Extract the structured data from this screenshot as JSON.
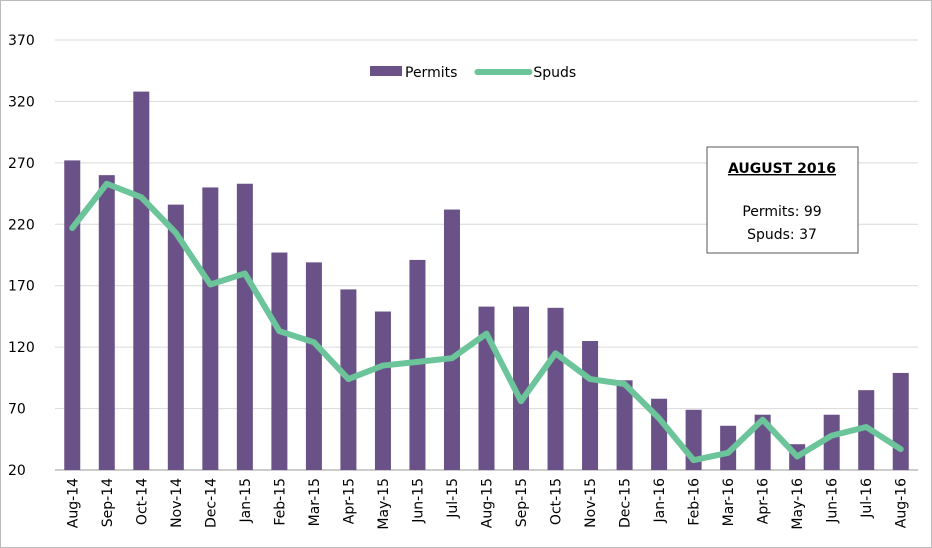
{
  "chart_data": {
    "type": "bar_line",
    "categories": [
      "Aug-14",
      "Sep-14",
      "Oct-14",
      "Nov-14",
      "Dec-14",
      "Jan-15",
      "Feb-15",
      "Mar-15",
      "Apr-15",
      "May-15",
      "Jun-15",
      "Jul-15",
      "Aug-15",
      "Sep-15",
      "Oct-15",
      "Nov-15",
      "Dec-15",
      "Jan-16",
      "Feb-16",
      "Mar-16",
      "Apr-16",
      "May-16",
      "Jun-16",
      "Jul-16",
      "Aug-16"
    ],
    "series": [
      {
        "name": "Permits",
        "type": "bar",
        "color": "#6a5188",
        "values": [
          272,
          260,
          328,
          236,
          250,
          253,
          197,
          189,
          167,
          149,
          191,
          232,
          153,
          153,
          152,
          125,
          93,
          78,
          69,
          56,
          65,
          41,
          65,
          85,
          99
        ]
      },
      {
        "name": "Spuds",
        "type": "line",
        "color": "#6cc49a",
        "values": [
          217,
          253,
          242,
          213,
          171,
          180,
          133,
          124,
          94,
          105,
          108,
          111,
          131,
          76,
          115,
          94,
          90,
          62,
          28,
          34,
          61,
          31,
          48,
          55,
          37
        ]
      }
    ],
    "ylim": [
      20,
      370
    ],
    "yticks": [
      20,
      70,
      120,
      170,
      220,
      270,
      320,
      370
    ],
    "grid": true,
    "annotation": {
      "title": "AUGUST 2016",
      "lines": [
        "Permits: 99",
        "Spuds: 37"
      ]
    }
  }
}
